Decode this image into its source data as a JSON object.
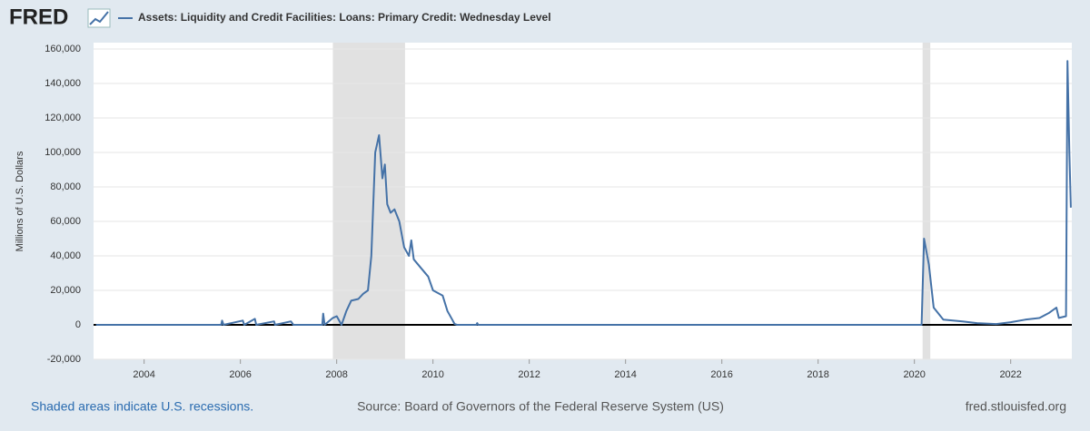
{
  "logo": "FRED",
  "chart_data": {
    "type": "line",
    "title": "Assets: Liquidity and Credit Facilities: Loans: Primary Credit: Wednesday Level",
    "y_label": "Millions of U.S. Dollars",
    "recession_note": "Shaded areas indicate U.S. recessions.",
    "source": "Source: Board of Governors of the Federal Reserve System (US)",
    "site": "fred.stlouisfed.org",
    "recessions": [
      [
        2007.92,
        2009.42
      ],
      [
        2020.17,
        2020.33
      ]
    ],
    "xlim": [
      2002.95,
      2023.27
    ],
    "xticks": [
      2004,
      2006,
      2008,
      2010,
      2012,
      2014,
      2016,
      2018,
      2020,
      2022
    ],
    "ylim": [
      -20000,
      160000
    ],
    "yticks": [
      {
        "value": -20000,
        "label": "-20,000"
      },
      0,
      {
        "value": 20000,
        "label": "20,000"
      },
      {
        "value": 40000,
        "label": "40,000"
      },
      {
        "value": 60000,
        "label": "60,000"
      },
      {
        "value": 80000,
        "label": "80,000"
      },
      {
        "value": 100000,
        "label": "100,000"
      },
      {
        "value": 120000,
        "label": "120,000"
      },
      {
        "value": 140000,
        "label": "140,000"
      },
      {
        "value": 160000,
        "label": "160,000"
      }
    ],
    "grid": true,
    "x": [
      2003.0,
      2005.6,
      2005.62,
      2005.65,
      2006.05,
      2006.08,
      2006.3,
      2006.33,
      2006.7,
      2006.72,
      2007.05,
      2007.1,
      2007.7,
      2007.72,
      2007.75,
      2007.92,
      2008.0,
      2008.1,
      2008.2,
      2008.3,
      2008.45,
      2008.55,
      2008.65,
      2008.72,
      2008.8,
      2008.88,
      2008.95,
      2009.0,
      2009.05,
      2009.12,
      2009.2,
      2009.3,
      2009.4,
      2009.5,
      2009.55,
      2009.6,
      2009.75,
      2009.9,
      2010.0,
      2010.2,
      2010.3,
      2010.4,
      2010.45,
      2010.5,
      2010.9,
      2010.92,
      2010.94,
      2020.15,
      2020.2,
      2020.3,
      2020.4,
      2020.6,
      2021.0,
      2021.3,
      2021.7,
      2022.0,
      2022.3,
      2022.6,
      2022.8,
      2022.95,
      2023.0,
      2023.15,
      2023.18,
      2023.22,
      2023.25
    ],
    "series": [
      {
        "name": "Assets: Liquidity and Credit Facilities: Loans: Primary Credit: Wednesday Level",
        "color": "#4572a7",
        "values": [
          0,
          0,
          2500,
          0,
          2500,
          0,
          3500,
          0,
          2000,
          0,
          2000,
          0,
          0,
          6500,
          0,
          4000,
          5000,
          0,
          8000,
          14000,
          15000,
          18000,
          20000,
          40000,
          100000,
          110000,
          85000,
          93000,
          70000,
          65000,
          67000,
          60000,
          45000,
          40000,
          49000,
          38000,
          33000,
          28000,
          20000,
          17000,
          8000,
          3000,
          500,
          0,
          0,
          1000,
          0,
          0,
          50000,
          35000,
          10000,
          3000,
          2000,
          1000,
          500,
          1500,
          3000,
          4000,
          7000,
          10000,
          4000,
          5000,
          153000,
          100000,
          68000
        ]
      }
    ]
  }
}
